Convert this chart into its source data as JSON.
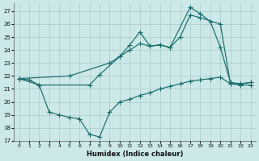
{
  "xlabel": "Humidex (Indice chaleur)",
  "bg_color": "#cce8e8",
  "line_color": "#1a6b6b",
  "grid_color": "#aacccc",
  "xlim": [
    -0.5,
    23.5
  ],
  "ylim": [
    17,
    27.6
  ],
  "xticks": [
    0,
    1,
    2,
    3,
    4,
    5,
    6,
    7,
    8,
    9,
    10,
    11,
    12,
    13,
    14,
    15,
    16,
    17,
    18,
    19,
    20,
    21,
    22,
    23
  ],
  "yticks": [
    17,
    18,
    19,
    20,
    21,
    22,
    23,
    24,
    25,
    26,
    27
  ],
  "line1_x": [
    0,
    1,
    2,
    7,
    8,
    10,
    11,
    12,
    13,
    14,
    15,
    17,
    18,
    19,
    20,
    21,
    22,
    23
  ],
  "line1_y": [
    21.8,
    21.7,
    21.3,
    21.3,
    22.1,
    23.5,
    24.4,
    25.4,
    24.3,
    24.4,
    24.2,
    27.3,
    26.8,
    26.2,
    24.2,
    21.5,
    21.4,
    21.5
  ],
  "line2_x": [
    0,
    5,
    9,
    10,
    11,
    12,
    13,
    14,
    15,
    16,
    17,
    18,
    20,
    21,
    22,
    23
  ],
  "line2_y": [
    21.8,
    22.0,
    23.0,
    23.5,
    24.0,
    24.5,
    24.3,
    24.4,
    24.2,
    25.0,
    26.7,
    26.5,
    26.0,
    21.4,
    21.4,
    21.5
  ],
  "line3_x": [
    0,
    2,
    3,
    4,
    5,
    6,
    7,
    8,
    9,
    10,
    11,
    12,
    13,
    14,
    15,
    16,
    17,
    18,
    19,
    20,
    21,
    22,
    23
  ],
  "line3_y": [
    21.8,
    21.3,
    19.2,
    19.0,
    18.8,
    18.7,
    17.5,
    17.3,
    19.2,
    20.0,
    20.2,
    20.5,
    20.7,
    21.0,
    21.2,
    21.4,
    21.6,
    21.7,
    21.8,
    21.9,
    21.4,
    21.3,
    21.3
  ]
}
